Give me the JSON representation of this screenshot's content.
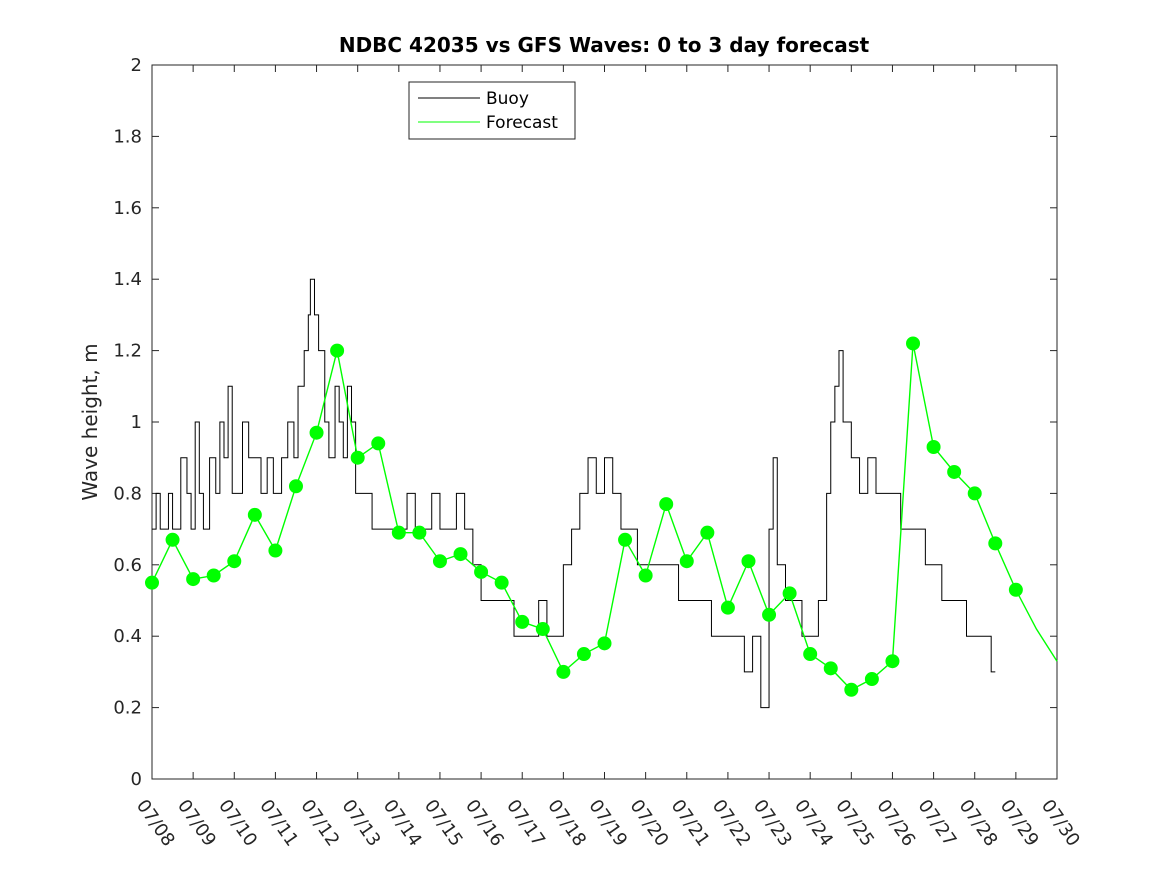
{
  "chart_data": {
    "type": "line",
    "title": "NDBC 42035 vs GFS Waves: 0 to 3 day forecast",
    "xlabel": "",
    "ylabel": "Wave height, m",
    "xlim": [
      "07/08",
      "07/30"
    ],
    "ylim": [
      0,
      2
    ],
    "x_ticks": [
      "07/08",
      "07/09",
      "07/10",
      "07/11",
      "07/12",
      "07/13",
      "07/14",
      "07/15",
      "07/16",
      "07/17",
      "07/18",
      "07/19",
      "07/20",
      "07/21",
      "07/22",
      "07/23",
      "07/24",
      "07/25",
      "07/26",
      "07/27",
      "07/28",
      "07/29",
      "07/30"
    ],
    "y_ticks": [
      "0",
      "0.2",
      "0.4",
      "0.6",
      "0.8",
      "1",
      "1.2",
      "1.4",
      "1.6",
      "1.8",
      "2"
    ],
    "grid": false,
    "legend_position": "top-left",
    "x_unit": "days since 07/08",
    "series": [
      {
        "name": "Buoy",
        "color": "#000000",
        "style": "step",
        "points": [
          [
            0,
            0.7
          ],
          [
            0.1,
            0.8
          ],
          [
            0.2,
            0.7
          ],
          [
            0.4,
            0.8
          ],
          [
            0.5,
            0.7
          ],
          [
            0.7,
            0.9
          ],
          [
            0.85,
            0.8
          ],
          [
            0.95,
            0.7
          ],
          [
            1.05,
            1.0
          ],
          [
            1.15,
            0.8
          ],
          [
            1.25,
            0.7
          ],
          [
            1.4,
            0.9
          ],
          [
            1.55,
            0.8
          ],
          [
            1.65,
            1.0
          ],
          [
            1.75,
            0.9
          ],
          [
            1.85,
            1.1
          ],
          [
            1.95,
            0.8
          ],
          [
            2.05,
            0.8
          ],
          [
            2.2,
            1.0
          ],
          [
            2.35,
            0.9
          ],
          [
            2.5,
            0.9
          ],
          [
            2.65,
            0.8
          ],
          [
            2.8,
            0.9
          ],
          [
            2.95,
            0.8
          ],
          [
            3.0,
            0.8
          ],
          [
            3.15,
            0.9
          ],
          [
            3.3,
            1.0
          ],
          [
            3.45,
            0.9
          ],
          [
            3.55,
            1.1
          ],
          [
            3.7,
            1.2
          ],
          [
            3.8,
            1.3
          ],
          [
            3.85,
            1.4
          ],
          [
            3.95,
            1.3
          ],
          [
            4.05,
            1.2
          ],
          [
            4.2,
            1.0
          ],
          [
            4.3,
            0.9
          ],
          [
            4.45,
            1.1
          ],
          [
            4.55,
            1.0
          ],
          [
            4.65,
            0.9
          ],
          [
            4.75,
            1.1
          ],
          [
            4.85,
            1.0
          ],
          [
            4.95,
            0.8
          ],
          [
            5.05,
            0.8
          ],
          [
            5.2,
            0.8
          ],
          [
            5.35,
            0.7
          ],
          [
            5.5,
            0.7
          ],
          [
            5.7,
            0.7
          ],
          [
            5.9,
            0.7
          ],
          [
            6.05,
            0.7
          ],
          [
            6.2,
            0.8
          ],
          [
            6.4,
            0.7
          ],
          [
            6.6,
            0.7
          ],
          [
            6.8,
            0.8
          ],
          [
            7.0,
            0.7
          ],
          [
            7.2,
            0.7
          ],
          [
            7.4,
            0.8
          ],
          [
            7.6,
            0.7
          ],
          [
            7.8,
            0.6
          ],
          [
            8.0,
            0.5
          ],
          [
            8.2,
            0.5
          ],
          [
            8.4,
            0.5
          ],
          [
            8.6,
            0.5
          ],
          [
            8.8,
            0.4
          ],
          [
            9.0,
            0.4
          ],
          [
            9.2,
            0.4
          ],
          [
            9.4,
            0.5
          ],
          [
            9.6,
            0.4
          ],
          [
            9.8,
            0.4
          ],
          [
            10.0,
            0.6
          ],
          [
            10.2,
            0.7
          ],
          [
            10.4,
            0.8
          ],
          [
            10.6,
            0.9
          ],
          [
            10.8,
            0.8
          ],
          [
            11.0,
            0.9
          ],
          [
            11.2,
            0.8
          ],
          [
            11.4,
            0.7
          ],
          [
            11.6,
            0.7
          ],
          [
            11.8,
            0.6
          ],
          [
            12.0,
            0.6
          ],
          [
            12.2,
            0.6
          ],
          [
            12.4,
            0.6
          ],
          [
            12.6,
            0.6
          ],
          [
            12.8,
            0.5
          ],
          [
            13.0,
            0.5
          ],
          [
            13.2,
            0.5
          ],
          [
            13.4,
            0.5
          ],
          [
            13.6,
            0.4
          ],
          [
            13.8,
            0.4
          ],
          [
            14.0,
            0.4
          ],
          [
            14.2,
            0.4
          ],
          [
            14.4,
            0.3
          ],
          [
            14.6,
            0.4
          ],
          [
            14.8,
            0.2
          ],
          [
            15.0,
            0.7
          ],
          [
            15.1,
            0.9
          ],
          [
            15.2,
            0.6
          ],
          [
            15.4,
            0.5
          ],
          [
            15.6,
            0.5
          ],
          [
            15.8,
            0.4
          ],
          [
            16.0,
            0.4
          ],
          [
            16.2,
            0.5
          ],
          [
            16.4,
            0.8
          ],
          [
            16.5,
            1.0
          ],
          [
            16.6,
            1.1
          ],
          [
            16.7,
            1.2
          ],
          [
            16.8,
            1.0
          ],
          [
            17.0,
            0.9
          ],
          [
            17.2,
            0.8
          ],
          [
            17.4,
            0.9
          ],
          [
            17.6,
            0.8
          ],
          [
            17.8,
            0.8
          ],
          [
            18.0,
            0.8
          ],
          [
            18.2,
            0.7
          ],
          [
            18.4,
            0.7
          ],
          [
            18.6,
            0.7
          ],
          [
            18.8,
            0.6
          ],
          [
            19.0,
            0.6
          ],
          [
            19.2,
            0.5
          ],
          [
            19.4,
            0.5
          ],
          [
            19.6,
            0.5
          ],
          [
            19.8,
            0.4
          ],
          [
            20.0,
            0.4
          ],
          [
            20.2,
            0.4
          ],
          [
            20.4,
            0.3
          ],
          [
            20.5,
            0.3
          ]
        ]
      },
      {
        "name": "Forecast",
        "color": "#00ff00",
        "points": [
          [
            0,
            0.55
          ],
          [
            0.5,
            0.67
          ],
          [
            1.0,
            0.56
          ],
          [
            1.5,
            0.57
          ],
          [
            2.0,
            0.61
          ],
          [
            2.5,
            0.74
          ],
          [
            3.0,
            0.64
          ],
          [
            3.5,
            0.82
          ],
          [
            4.0,
            0.97
          ],
          [
            4.5,
            1.2
          ],
          [
            5.0,
            0.9
          ],
          [
            5.5,
            0.94
          ],
          [
            6.0,
            0.69
          ],
          [
            6.5,
            0.69
          ],
          [
            7.0,
            0.61
          ],
          [
            7.5,
            0.63
          ],
          [
            8.0,
            0.58
          ],
          [
            8.5,
            0.55
          ],
          [
            9.0,
            0.44
          ],
          [
            9.5,
            0.42
          ],
          [
            10.0,
            0.3
          ],
          [
            10.5,
            0.35
          ],
          [
            11.0,
            0.38
          ],
          [
            11.5,
            0.67
          ],
          [
            12.0,
            0.57
          ],
          [
            12.5,
            0.77
          ],
          [
            13.0,
            0.61
          ],
          [
            13.5,
            0.69
          ],
          [
            14.0,
            0.48
          ],
          [
            14.5,
            0.61
          ],
          [
            15.0,
            0.46
          ],
          [
            15.5,
            0.52
          ],
          [
            16.0,
            0.35
          ],
          [
            16.5,
            0.31
          ],
          [
            17.0,
            0.25
          ],
          [
            17.5,
            0.28
          ],
          [
            18.0,
            0.33
          ],
          [
            18.5,
            1.22
          ],
          [
            19.0,
            0.93
          ],
          [
            19.5,
            0.86
          ],
          [
            20.0,
            0.8
          ],
          [
            20.5,
            0.66
          ],
          [
            21.0,
            0.53
          ],
          [
            21.5,
            0.42
          ],
          [
            22.0,
            0.33
          ]
        ]
      }
    ],
    "forecast_markers": [
      [
        0,
        0.55
      ],
      [
        0.5,
        0.67
      ],
      [
        1.0,
        0.56
      ],
      [
        1.5,
        0.57
      ],
      [
        2.0,
        0.61
      ],
      [
        2.5,
        0.74
      ],
      [
        3.0,
        0.64
      ],
      [
        3.5,
        0.82
      ],
      [
        4.0,
        0.97
      ],
      [
        4.5,
        1.2
      ],
      [
        5.0,
        0.9
      ],
      [
        5.5,
        0.94
      ],
      [
        6.0,
        0.69
      ],
      [
        6.5,
        0.69
      ],
      [
        7.0,
        0.61
      ],
      [
        7.5,
        0.63
      ],
      [
        8.0,
        0.58
      ],
      [
        8.5,
        0.55
      ],
      [
        9.0,
        0.44
      ],
      [
        9.5,
        0.42
      ],
      [
        10.0,
        0.3
      ],
      [
        10.5,
        0.35
      ],
      [
        11.0,
        0.38
      ],
      [
        11.5,
        0.67
      ],
      [
        12.0,
        0.57
      ],
      [
        12.5,
        0.77
      ],
      [
        13.0,
        0.61
      ],
      [
        13.5,
        0.69
      ],
      [
        14.0,
        0.48
      ],
      [
        14.5,
        0.61
      ],
      [
        15.0,
        0.46
      ],
      [
        15.5,
        0.52
      ],
      [
        16.0,
        0.35
      ],
      [
        16.5,
        0.31
      ],
      [
        17.0,
        0.25
      ],
      [
        17.5,
        0.28
      ],
      [
        18.0,
        0.33
      ],
      [
        18.5,
        1.22
      ],
      [
        19.0,
        0.93
      ],
      [
        19.5,
        0.86
      ],
      [
        20.0,
        0.8
      ],
      [
        20.5,
        0.66
      ],
      [
        21.0,
        0.53
      ]
    ],
    "legend": [
      "Buoy",
      "Forecast"
    ]
  }
}
